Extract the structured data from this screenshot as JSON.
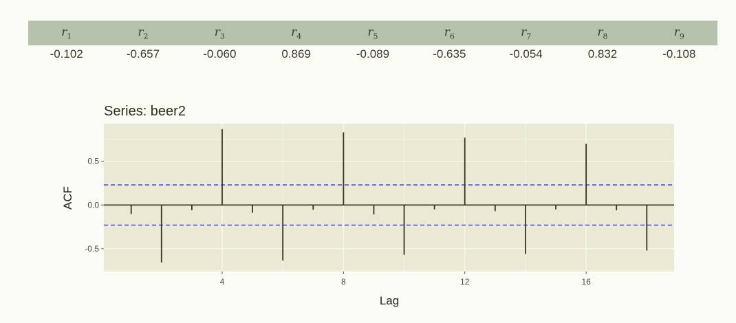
{
  "table": {
    "headers": [
      {
        "sym": "r",
        "sub": "1"
      },
      {
        "sym": "r",
        "sub": "2"
      },
      {
        "sym": "r",
        "sub": "3"
      },
      {
        "sym": "r",
        "sub": "4"
      },
      {
        "sym": "r",
        "sub": "5"
      },
      {
        "sym": "r",
        "sub": "6"
      },
      {
        "sym": "r",
        "sub": "7"
      },
      {
        "sym": "r",
        "sub": "8"
      },
      {
        "sym": "r",
        "sub": "9"
      }
    ],
    "values": [
      "-0.102",
      "-0.657",
      "-0.060",
      "0.869",
      "-0.089",
      "-0.635",
      "-0.054",
      "0.832",
      "-0.108"
    ]
  },
  "chart_data": {
    "type": "bar",
    "title": "Series: beer2",
    "xlabel": "Lag",
    "ylabel": "ACF",
    "x": [
      1,
      2,
      3,
      4,
      5,
      6,
      7,
      8,
      9,
      10,
      11,
      12,
      13,
      14,
      15,
      16,
      17,
      18
    ],
    "values": [
      -0.102,
      -0.657,
      -0.06,
      0.869,
      -0.089,
      -0.635,
      -0.054,
      0.832,
      -0.108,
      -0.57,
      -0.05,
      0.77,
      -0.07,
      -0.56,
      -0.05,
      0.7,
      -0.06,
      -0.52
    ],
    "xlim": [
      0.1,
      18.9
    ],
    "ylim": [
      -0.76,
      0.93
    ],
    "x_ticks": [
      4,
      8,
      12,
      16
    ],
    "x_tick_labels": [
      "4",
      "8",
      "12",
      "16"
    ],
    "y_ticks": [
      -0.5,
      0.0,
      0.5
    ],
    "y_tick_labels": [
      "-0.5",
      "0.0",
      "0.5"
    ],
    "confidence_bound": 0.23,
    "grid": true,
    "colors": {
      "bars": "#3a3323",
      "bounds": "#3b2ef0",
      "panel": "#e9e9d4",
      "grid": "#f7f7ec"
    }
  }
}
